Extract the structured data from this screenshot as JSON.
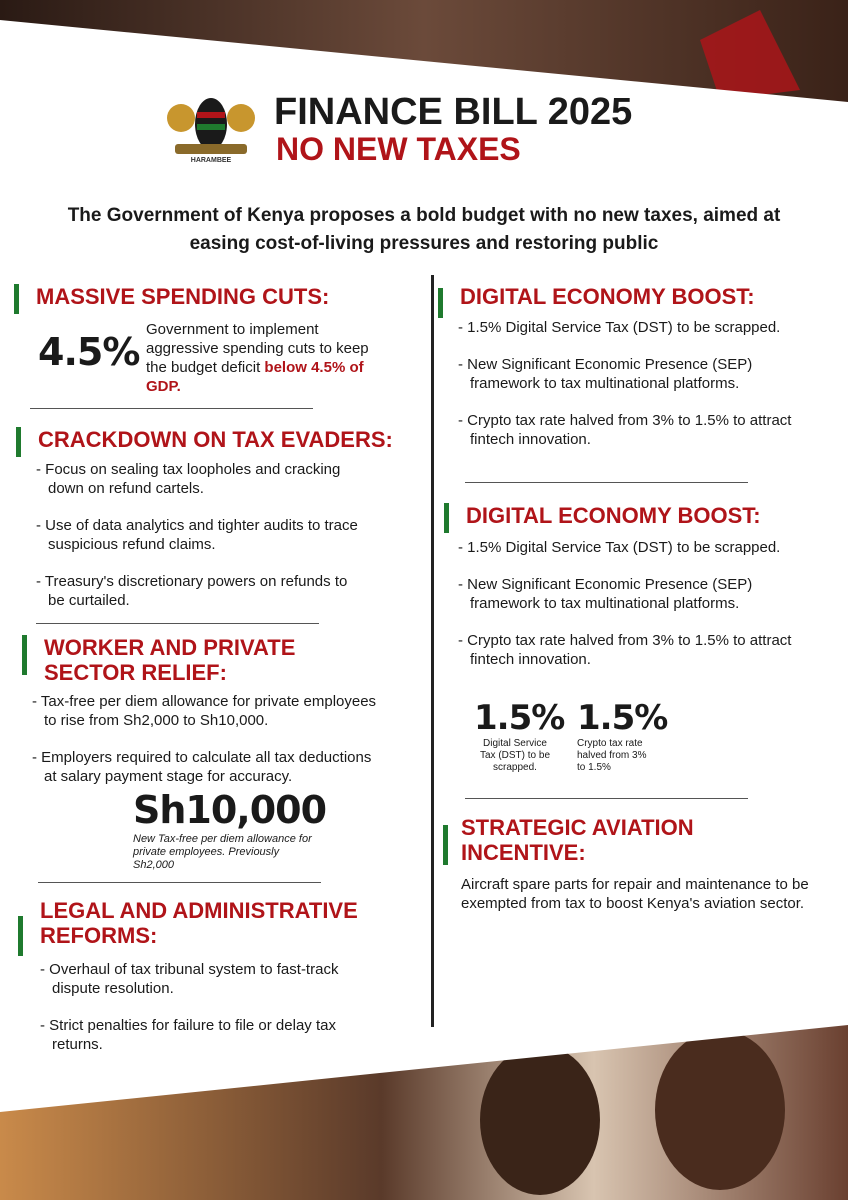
{
  "header": {
    "title": "FINANCE BILL 2025",
    "subtitle": "NO NEW TAXES",
    "emblem_motto": "HARAMBEE"
  },
  "intro": "The Government of Kenya proposes a bold budget with no new taxes, aimed at easing cost-of-living pressures and restoring public",
  "left": [
    {
      "heading": "MASSIVE SPENDING CUTS:",
      "stat": "4.5%",
      "text": "Government to implement aggressive spending cuts to keep the budget deficit ",
      "highlight": "below 4.5% of GDP."
    },
    {
      "heading": "CRACKDOWN ON TAX EVADERS:",
      "items": [
        "- Focus on sealing tax loopholes and cracking down on refund cartels.",
        "- Use of data analytics and tighter audits to trace suspicious refund claims.",
        "- Treasury's discretionary powers on refunds to be curtailed."
      ]
    },
    {
      "heading": "WORKER AND PRIVATE SECTOR RELIEF:",
      "items": [
        "- Tax-free per diem allowance for private employees to rise from Sh2,000 to Sh10,000.",
        "- Employers required to calculate all tax deductions at salary payment stage for accuracy."
      ],
      "stat": "Sh10,000",
      "caption": "New Tax-free per diem allowance for private employees. Previously Sh2,000"
    },
    {
      "heading": "LEGAL AND ADMINISTRATIVE REFORMS:",
      "items": [
        "- Overhaul of tax tribunal system to fast-track dispute resolution.",
        "- Strict penalties for failure to file or delay tax returns."
      ]
    }
  ],
  "right": [
    {
      "heading": "DIGITAL ECONOMY BOOST:",
      "items": [
        "- 1.5% Digital Service Tax (DST) to be scrapped.",
        "- New Significant Economic Presence (SEP) framework to tax multinational platforms.",
        "- Crypto tax rate halved from 3% to 1.5% to attract fintech innovation."
      ]
    },
    {
      "heading": "DIGITAL ECONOMY BOOST:",
      "items": [
        "- 1.5% Digital Service Tax (DST) to be scrapped.",
        "- New Significant Economic Presence (SEP) framework to tax multinational platforms.",
        "- Crypto tax rate halved from 3% to 1.5% to attract fintech innovation."
      ],
      "stats": [
        {
          "value": "1.5%",
          "caption": "Digital Service Tax (DST) to be scrapped."
        },
        {
          "value": "1.5%",
          "caption": "Crypto tax rate halved from 3% to 1.5%"
        }
      ]
    },
    {
      "heading": "STRATEGIC AVIATION INCENTIVE:",
      "items": [
        "Aircraft spare parts for repair and maintenance to be exempted from tax to boost Kenya's aviation sector."
      ]
    }
  ]
}
